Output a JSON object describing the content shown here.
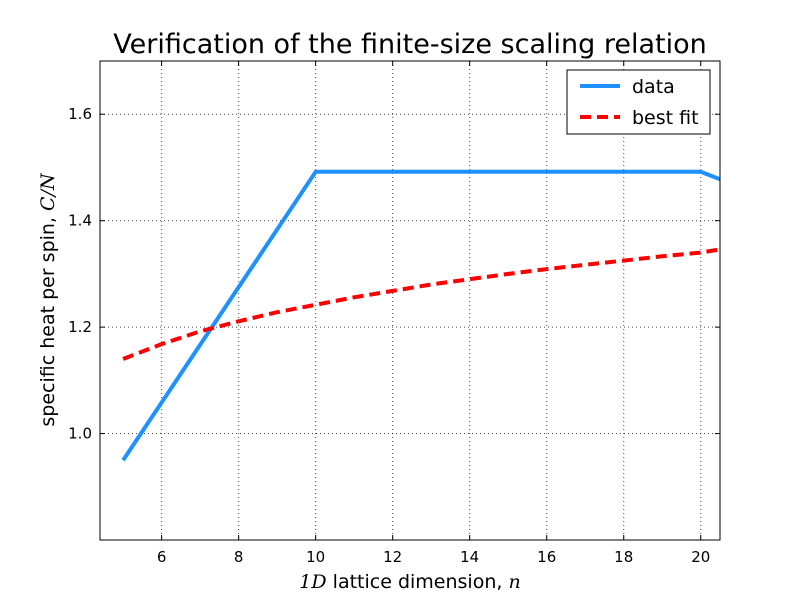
{
  "chart_data": {
    "type": "line",
    "title": "Verification of the finite-size scaling relation",
    "xlabel": "1D lattice dimension, n",
    "xlabel_parts": {
      "math1": "1D",
      "text": " lattice dimension, ",
      "math2": "n"
    },
    "ylabel": "specific heat per spin, C/N",
    "ylabel_parts": {
      "text": "specific heat per spin, ",
      "math": "C/N"
    },
    "xlim": [
      4.4,
      20.5
    ],
    "ylim": [
      0.8,
      1.7
    ],
    "x_ticks": [
      6,
      8,
      10,
      12,
      14,
      16,
      18,
      20
    ],
    "y_ticks": [
      1.0,
      1.2,
      1.4,
      1.6
    ],
    "x_tick_labels": [
      "6",
      "8",
      "10",
      "12",
      "14",
      "16",
      "18",
      "20"
    ],
    "y_tick_labels": [
      "1.0",
      "1.2",
      "1.4",
      "1.6"
    ],
    "grid": true,
    "legend_position": "top-right",
    "series": [
      {
        "name": "data",
        "color": "#1e90ff",
        "style": "solid",
        "x": [
          5,
          10,
          20,
          20.5
        ],
        "y": [
          0.95,
          1.492,
          1.492,
          1.478
        ]
      },
      {
        "name": "best fit",
        "color": "#ff0000",
        "style": "dashed",
        "x": [
          5,
          6,
          7,
          8,
          9,
          10,
          11,
          12,
          13,
          14,
          15,
          16,
          17,
          18,
          19,
          20,
          20.5
        ],
        "y": [
          1.14,
          1.168,
          1.192,
          1.211,
          1.228,
          1.242,
          1.256,
          1.268,
          1.28,
          1.29,
          1.3,
          1.309,
          1.317,
          1.325,
          1.333,
          1.34,
          1.346
        ]
      }
    ]
  }
}
